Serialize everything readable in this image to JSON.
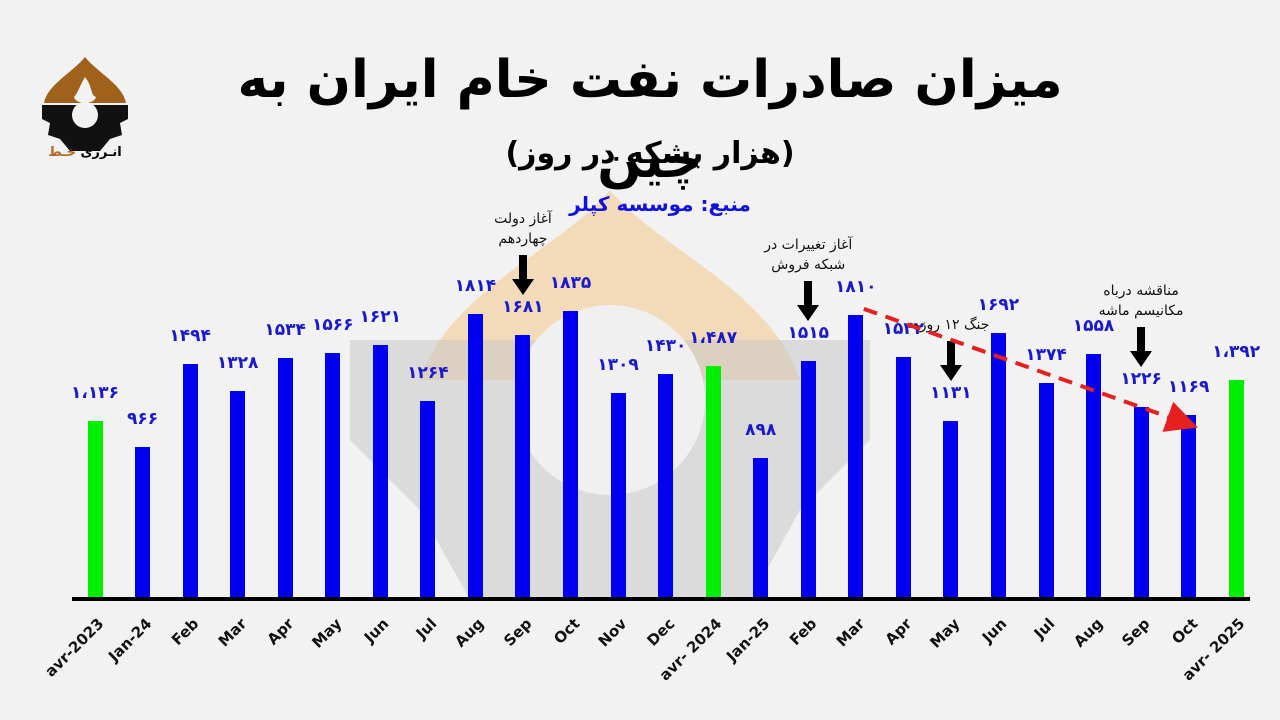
{
  "header": {
    "title": "میزان صادرات نفت خام ایران به چین",
    "subtitle": "(هزار بشکه در روز)",
    "source": "منبع: موسسه کپلر"
  },
  "logo": {
    "text_accent": "خـط",
    "text_main": "انـرژی"
  },
  "annotations": [
    {
      "id": "gov14",
      "line1": "آغاز دولت",
      "line2": "چهاردهم",
      "target_index": 9
    },
    {
      "id": "sales",
      "line1": "آغاز تغییرات در",
      "line2": "شبکه فروش",
      "target_index": 15
    },
    {
      "id": "war",
      "line1": "جنگ ۱۲ روزه",
      "line2": "",
      "target_index": 18
    },
    {
      "id": "snapback",
      "line1": "مناقشه درباه",
      "line2": "مکانیسم ماشه",
      "target_index": 22
    }
  ],
  "colors": {
    "bar_monthly": "#0000ee",
    "bar_annual": "#00ee00",
    "value_label": "#1a1acc",
    "trend_line": "#e62020",
    "baseline": "#000000"
  },
  "chart_data": {
    "type": "bar",
    "title": "میزان صادرات نفت خام ایران به چین",
    "subtitle": "(هزار بشکه در روز)",
    "source": "منبع: موسسه کپلر",
    "xlabel": "",
    "ylabel": "هزار بشکه در روز",
    "grid": false,
    "legend": "none",
    "categories": [
      "avr-2023",
      "Jan-24",
      "Feb",
      "Mar",
      "Apr",
      "May",
      "Jun",
      "Jul",
      "Aug",
      "Sep",
      "Oct",
      "Nov",
      "Dec",
      "avr- 2024",
      "Jan-25",
      "Feb",
      "Mar",
      "Apr",
      "May",
      "Jun",
      "Jul",
      "Aug",
      "Sep",
      "Oct",
      "avr- 2025"
    ],
    "values": [
      1136,
      966,
      1494,
      1328,
      1534,
      1566,
      1621,
      1264,
      1814,
      1681,
      1835,
      1309,
      1430,
      1487,
      898,
      1515,
      1810,
      1542,
      1131,
      1692,
      1374,
      1558,
      1226,
      1169,
      1392
    ],
    "value_labels": [
      "۱،۱۳۶",
      "۹۶۶",
      "۱۴۹۴",
      "۱۳۲۸",
      "۱۵۳۴",
      "۱۵۶۶",
      "۱۶۲۱",
      "۱۲۶۴",
      "۱۸۱۴",
      "۱۶۸۱",
      "۱۸۳۵",
      "۱۳۰۹",
      "۱۴۳۰",
      "۱،۴۸۷",
      "۸۹۸",
      "۱۵۱۵",
      "۱۸۱۰",
      "۱۵۴۲",
      "۱۱۳۱",
      "۱۶۹۲",
      "۱۳۷۴",
      "۱۵۵۸",
      "۱۲۲۶",
      "۱۱۶۹",
      "۱،۳۹۲"
    ],
    "bar_kind": [
      "annual",
      "monthly",
      "monthly",
      "monthly",
      "monthly",
      "monthly",
      "monthly",
      "monthly",
      "monthly",
      "monthly",
      "monthly",
      "monthly",
      "monthly",
      "annual",
      "monthly",
      "monthly",
      "monthly",
      "monthly",
      "monthly",
      "monthly",
      "monthly",
      "monthly",
      "monthly",
      "monthly",
      "annual"
    ],
    "trend_line": {
      "from_category_index": 16,
      "to_category_index": 23,
      "style": "dashed-arrow",
      "color": "#e62020"
    },
    "ylim": [
      0,
      1900
    ]
  }
}
